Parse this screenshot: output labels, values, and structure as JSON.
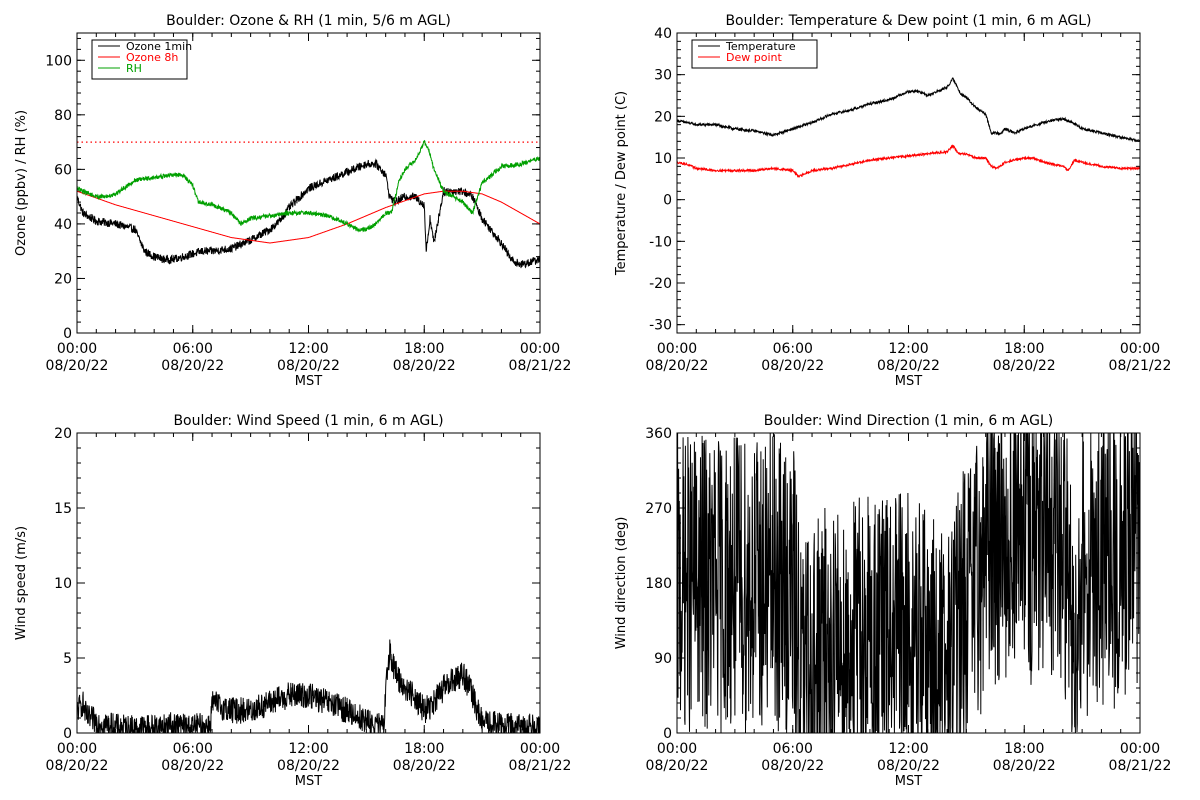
{
  "chart_data": [
    {
      "id": "ozone",
      "type": "line",
      "title": "Boulder: Ozone & RH (1 min, 5/6 m AGL)",
      "xlabel": "MST",
      "ylabel": "Ozone (ppbv) / RH (%)",
      "xlim": [
        0,
        24
      ],
      "ylim": [
        0,
        110
      ],
      "yticks": [
        0,
        20,
        40,
        60,
        80,
        100
      ],
      "xticks": [
        {
          "x": 0,
          "time": "00:00",
          "date": "08/20/22"
        },
        {
          "x": 6,
          "time": "06:00",
          "date": "08/20/22"
        },
        {
          "x": 12,
          "time": "12:00",
          "date": "08/20/22"
        },
        {
          "x": 18,
          "time": "18:00",
          "date": "08/20/22"
        },
        {
          "x": 24,
          "time": "00:00",
          "date": "08/21/22"
        }
      ],
      "reference_line": {
        "y": 70,
        "color": "#ff0000",
        "style": "dotted"
      },
      "legend": "top-left",
      "series": [
        {
          "name": "Ozone 1min",
          "color": "#000000",
          "noise": 1.5,
          "x": [
            0,
            0.3,
            1,
            2,
            3,
            3.5,
            4,
            4.5,
            5,
            5.5,
            6,
            6.5,
            7,
            8,
            9,
            10,
            10.5,
            11,
            12,
            13,
            14,
            15,
            15.5,
            16,
            16.2,
            16.5,
            17,
            17.5,
            18,
            18.1,
            18.3,
            18.5,
            19,
            20,
            20.5,
            21,
            22,
            22.5,
            23,
            24
          ],
          "y": [
            50,
            44,
            41,
            40,
            38,
            30,
            28,
            27,
            27,
            28,
            29,
            30,
            30,
            31,
            34,
            38,
            41,
            46,
            53,
            56,
            59,
            62,
            62,
            58,
            50,
            48,
            50,
            50,
            47,
            30,
            42,
            33,
            52,
            52,
            50,
            42,
            33,
            27,
            25,
            27
          ]
        },
        {
          "name": "Ozone 8h",
          "color": "#ff0000",
          "noise": 0,
          "x": [
            0,
            2,
            4,
            6,
            8,
            10,
            12,
            14,
            16,
            18,
            19,
            20,
            21,
            22,
            23,
            24
          ],
          "y": [
            52,
            47,
            43,
            39,
            35,
            33,
            35,
            40,
            46,
            51,
            52,
            52,
            51,
            48,
            44,
            40
          ]
        },
        {
          "name": "RH",
          "color": "#00a000",
          "noise": 0.8,
          "x": [
            0,
            1,
            1.5,
            2,
            3,
            4,
            5,
            5.5,
            6,
            6.3,
            7,
            8,
            8.5,
            9,
            10,
            11,
            11.5,
            12,
            13,
            14,
            14.5,
            15,
            15.5,
            16,
            16.3,
            16.7,
            17,
            17.5,
            18,
            18.2,
            18.5,
            19,
            19.5,
            20,
            20.5,
            21,
            22,
            23,
            24
          ],
          "y": [
            53,
            50,
            50,
            51,
            56,
            57,
            58,
            58,
            54,
            48,
            47,
            44,
            40,
            42,
            43,
            44,
            44,
            44,
            43,
            40,
            38,
            38,
            40,
            44,
            44,
            56,
            60,
            63,
            70,
            68,
            60,
            52,
            50,
            48,
            44,
            55,
            61,
            62,
            64
          ]
        }
      ]
    },
    {
      "id": "temp",
      "type": "line",
      "title": "Boulder: Temperature & Dew point (1 min, 6 m AGL)",
      "xlabel": "MST",
      "ylabel": "Temperature / Dew point (C)",
      "xlim": [
        0,
        24
      ],
      "ylim": [
        -32,
        40
      ],
      "yticks": [
        -30,
        -20,
        -10,
        0,
        10,
        20,
        30,
        40
      ],
      "xticks": [
        {
          "x": 0,
          "time": "00:00",
          "date": "08/20/22"
        },
        {
          "x": 6,
          "time": "06:00",
          "date": "08/20/22"
        },
        {
          "x": 12,
          "time": "12:00",
          "date": "08/20/22"
        },
        {
          "x": 18,
          "time": "18:00",
          "date": "08/20/22"
        },
        {
          "x": 24,
          "time": "00:00",
          "date": "08/21/22"
        }
      ],
      "legend": "top-left",
      "series": [
        {
          "name": "Temperature",
          "color": "#000000",
          "noise": 0.3,
          "x": [
            0,
            1,
            2,
            3,
            4,
            5,
            6,
            7,
            8,
            9,
            10,
            11,
            12,
            12.5,
            13,
            13.5,
            14,
            14.3,
            14.7,
            15,
            15.5,
            16,
            16.3,
            16.8,
            17,
            17.5,
            18,
            19,
            20,
            20.5,
            21,
            22,
            23,
            24
          ],
          "y": [
            19,
            18,
            18,
            17,
            16.5,
            15.5,
            17,
            18.5,
            20.5,
            21.5,
            23,
            24,
            26,
            26,
            25,
            26,
            27,
            29,
            25.5,
            24.5,
            22,
            20.5,
            16,
            16,
            17,
            16,
            17,
            18.5,
            19.5,
            18.5,
            17,
            16,
            15,
            14
          ]
        },
        {
          "name": "Dew point",
          "color": "#ff0000",
          "noise": 0.25,
          "x": [
            0,
            0.5,
            1,
            2,
            3,
            4,
            5,
            6,
            6.3,
            7,
            8,
            9,
            10,
            11,
            12,
            13,
            14,
            14.3,
            14.6,
            15,
            15.5,
            16,
            16.3,
            16.6,
            17,
            17.5,
            18,
            18.5,
            19,
            20,
            20.3,
            20.6,
            21,
            22,
            23,
            24
          ],
          "y": [
            9,
            8.5,
            7.5,
            7,
            7,
            7,
            7.5,
            7,
            5.5,
            7,
            7.5,
            8.5,
            9.5,
            10,
            10.5,
            11,
            11.5,
            13,
            11,
            11,
            10,
            10,
            8,
            7.5,
            9,
            9.5,
            10,
            10,
            9,
            8,
            7,
            9.5,
            9,
            8,
            7.5,
            7.5
          ]
        }
      ]
    },
    {
      "id": "wspd",
      "type": "line",
      "title": "Boulder: Wind Speed (1 min, 6 m AGL)",
      "xlabel": "MST",
      "ylabel": "Wind speed (m/s)",
      "xlim": [
        0,
        24
      ],
      "ylim": [
        0,
        20
      ],
      "yticks": [
        0,
        5,
        10,
        15,
        20
      ],
      "xticks": [
        {
          "x": 0,
          "time": "00:00",
          "date": "08/20/22"
        },
        {
          "x": 6,
          "time": "06:00",
          "date": "08/20/22"
        },
        {
          "x": 12,
          "time": "12:00",
          "date": "08/20/22"
        },
        {
          "x": 18,
          "time": "18:00",
          "date": "08/20/22"
        },
        {
          "x": 24,
          "time": "00:00",
          "date": "08/21/22"
        }
      ],
      "series": [
        {
          "name": "",
          "color": "#000000",
          "noise": 0.9,
          "floor": 0,
          "x": [
            0,
            0.3,
            0.5,
            1,
            2,
            3,
            4,
            5,
            6,
            6.9,
            7,
            8,
            9,
            10,
            11,
            12,
            13,
            14,
            15,
            15.9,
            16,
            16.2,
            16.5,
            17,
            17.5,
            18,
            18.5,
            19,
            20,
            20.5,
            21,
            22,
            23,
            24
          ],
          "y": [
            1.5,
            2,
            1,
            0.8,
            0.4,
            0.3,
            0.4,
            0.5,
            0.4,
            0.5,
            2,
            1.5,
            1.5,
            2,
            2.5,
            2.5,
            2,
            1.5,
            0.8,
            0.3,
            3,
            5.5,
            4,
            3,
            2.5,
            1.5,
            2,
            3,
            4,
            2.5,
            0.7,
            0.5,
            0.4,
            0.5
          ]
        }
      ]
    },
    {
      "id": "wdir",
      "type": "line",
      "title": "Boulder: Wind Direction (1 min, 6 m AGL)",
      "xlabel": "MST",
      "ylabel": "Wind direction (deg)",
      "xlim": [
        0,
        24
      ],
      "ylim": [
        0,
        360
      ],
      "yticks": [
        0,
        90,
        180,
        270,
        360
      ],
      "xticks": [
        {
          "x": 0,
          "time": "00:00",
          "date": "08/20/22"
        },
        {
          "x": 6,
          "time": "06:00",
          "date": "08/20/22"
        },
        {
          "x": 12,
          "time": "12:00",
          "date": "08/20/22"
        },
        {
          "x": 18,
          "time": "18:00",
          "date": "08/20/22"
        },
        {
          "x": 24,
          "time": "00:00",
          "date": "08/21/22"
        }
      ],
      "series": [
        {
          "name": "",
          "color": "#000000",
          "noise": 180,
          "floor": 0,
          "ceil": 360,
          "x": [
            0,
            1,
            2,
            3,
            4,
            5,
            6,
            6.5,
            7,
            8,
            9,
            10,
            11,
            12,
            13,
            13.5,
            14,
            14.5,
            15,
            15.5,
            16,
            17,
            17.5,
            18,
            18.5,
            19,
            19.5,
            20,
            20.5,
            21,
            22,
            23,
            24
          ],
          "y": [
            180,
            180,
            180,
            180,
            180,
            180,
            170,
            60,
            80,
            100,
            110,
            115,
            110,
            115,
            100,
            80,
            70,
            130,
            150,
            170,
            230,
            240,
            230,
            250,
            230,
            230,
            230,
            235,
            120,
            200,
            200,
            210,
            230
          ]
        }
      ]
    }
  ]
}
